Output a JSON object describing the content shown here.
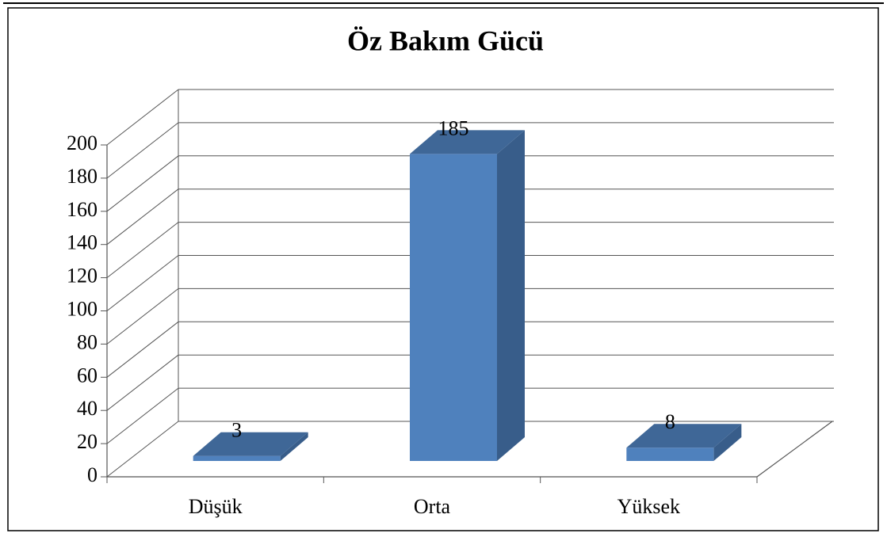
{
  "chart_data": {
    "type": "bar",
    "title": "Öz Bakım Gücü",
    "categories": [
      "Düşük",
      "Orta",
      "Yüksek"
    ],
    "values": [
      3,
      185,
      8
    ],
    "color": "#4f81bd",
    "ylim": [
      0,
      200
    ],
    "yticks": [
      0,
      20,
      40,
      60,
      80,
      100,
      120,
      140,
      160,
      180,
      200
    ],
    "grid": true
  }
}
